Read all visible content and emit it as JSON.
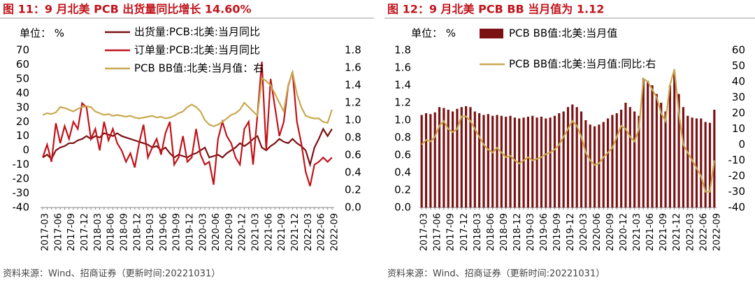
{
  "chart_data": [
    {
      "type": "line",
      "title": "图 11：9 月北美 PCB 出货量同比增长 14.60%",
      "unit_label": "单位： %",
      "source": "资料来源：Wind、招商证券（更新时间:20221031）",
      "categories": [
        "2017-03",
        null,
        null,
        "2017-06",
        null,
        null,
        "2017-09",
        null,
        null,
        "2017-12",
        null,
        null,
        "2018-03",
        null,
        null,
        "2018-06",
        null,
        null,
        "2018-09",
        null,
        null,
        "2018-12",
        null,
        null,
        "2019-03",
        null,
        null,
        "2019-06",
        null,
        null,
        "2019-09",
        null,
        null,
        "2019-12",
        null,
        null,
        "2020-03",
        null,
        null,
        "2020-06",
        null,
        null,
        "2020-09",
        null,
        null,
        "2020-12",
        null,
        null,
        "2021-03",
        null,
        null,
        "2021-06",
        null,
        null,
        "2021-09",
        null,
        null,
        "2021-12",
        null,
        null,
        "2022-03",
        null,
        null,
        "2022-06",
        null,
        null,
        "2022-09"
      ],
      "ylim": [
        -40,
        70
      ],
      "yticks": [
        -40,
        -30,
        -20,
        -10,
        0,
        10,
        20,
        30,
        40,
        50,
        60,
        70
      ],
      "y2lim": [
        0,
        1.8
      ],
      "y2ticks": [
        {
          "value": 0,
          "label": "0.0"
        },
        0.2,
        0.4,
        0.6,
        0.8,
        {
          "value": 1,
          "label": "1.0"
        },
        1.2,
        1.4,
        1.6,
        1.8
      ],
      "series": [
        {
          "name": "出货量:PCB:北美:当月同比",
          "color": "#7b1113",
          "values": [
            -5,
            -3,
            -6,
            0,
            2,
            3,
            5,
            5,
            7,
            8,
            10,
            8,
            10,
            9,
            12,
            11,
            10,
            12,
            10,
            9,
            8,
            7,
            6,
            5,
            4,
            2,
            3,
            0,
            2,
            -2,
            -5,
            -3,
            -4,
            -5,
            -3,
            -2,
            0,
            2,
            -5,
            -4,
            -3,
            -5,
            -2,
            0,
            2,
            5,
            3,
            5,
            8,
            10,
            2,
            0,
            3,
            5,
            8,
            6,
            5,
            8,
            5,
            3,
            0,
            -10,
            2,
            8,
            15,
            10,
            15
          ]
        },
        {
          "name": "订单量:PCB:北美:当月同比",
          "color": "#c0141b",
          "values": [
            -5,
            4,
            -8,
            19,
            5,
            17,
            8,
            20,
            15,
            33,
            30,
            8,
            15,
            0,
            20,
            7,
            15,
            5,
            0,
            -8,
            -2,
            -12,
            5,
            18,
            -5,
            2,
            8,
            -3,
            12,
            20,
            -10,
            -5,
            10,
            -8,
            -5,
            15,
            -3,
            -10,
            -8,
            -24,
            8,
            20,
            10,
            5,
            -5,
            -10,
            15,
            20,
            -10,
            25,
            62,
            0,
            50,
            30,
            10,
            20,
            45,
            55,
            20,
            5,
            -15,
            -25,
            -10,
            -8,
            -5,
            -8,
            -5
          ]
        },
        {
          "name": "PCB BB值:北美:当月值：右",
          "color": "#c8a951",
          "axis": "y2",
          "values": [
            1.06,
            1.08,
            1.07,
            1.09,
            1.15,
            1.14,
            1.12,
            1.1,
            1.13,
            1.15,
            1.16,
            1.15,
            1.1,
            1.08,
            1.06,
            1.07,
            1.05,
            1.06,
            1.05,
            1.04,
            1.05,
            1.03,
            1.02,
            1.03,
            1.04,
            1.05,
            1.03,
            1.04,
            1.02,
            1.03,
            1.05,
            1.08,
            1.1,
            1.15,
            1.18,
            1.15,
            1.1,
            1.0,
            0.95,
            0.93,
            0.95,
            0.98,
            1.02,
            1.06,
            1.08,
            1.12,
            1.2,
            1.15,
            1.1,
            1.05,
            1.48,
            1.45,
            1.4,
            1.3,
            1.2,
            1.1,
            1.4,
            1.55,
            1.3,
            1.15,
            1.05,
            1.03,
            1.02,
            1.02,
            0.98,
            0.97,
            1.12
          ]
        }
      ]
    },
    {
      "type": "combo",
      "title": "图 12：9 月北美 PCB BB 当月值为 1.12",
      "unit_label": "单位： %",
      "source": "资料来源：Wind、招商证券（更新时间:20221031）",
      "categories": [
        "2017-03",
        null,
        null,
        "2017-06",
        null,
        null,
        "2017-09",
        null,
        null,
        "2017-12",
        null,
        null,
        "2018-03",
        null,
        null,
        "2018-06",
        null,
        null,
        "2018-09",
        null,
        null,
        "2018-12",
        null,
        null,
        "2019-03",
        null,
        null,
        "2019-06",
        null,
        null,
        "2019-09",
        null,
        null,
        "2019-12",
        null,
        null,
        "2020-03",
        null,
        null,
        "2020-06",
        null,
        null,
        "2020-09",
        null,
        null,
        "2020-12",
        null,
        null,
        "2021-03",
        null,
        null,
        "2021-06",
        null,
        null,
        "2021-09",
        null,
        null,
        "2021-12",
        null,
        null,
        "2022-03",
        null,
        null,
        "2022-06",
        null,
        null,
        "2022-09"
      ],
      "ylim": [
        0,
        1.8
      ],
      "yticks": [
        {
          "value": 0,
          "label": "0.0"
        },
        0.2,
        0.4,
        0.6,
        0.8,
        {
          "value": 1,
          "label": "1.0"
        },
        1.2,
        1.4,
        1.6,
        1.8
      ],
      "y2lim": [
        -40,
        60
      ],
      "y2ticks": [
        -40,
        -30,
        -20,
        -10,
        0,
        10,
        20,
        30,
        40,
        50,
        60
      ],
      "series": [
        {
          "name": "PCB BB值:北美:当月值",
          "color": "#7b1113",
          "type": "bar",
          "values": [
            1.06,
            1.08,
            1.07,
            1.09,
            1.15,
            1.14,
            1.12,
            1.1,
            1.13,
            1.15,
            1.16,
            1.15,
            1.1,
            1.08,
            1.06,
            1.07,
            1.05,
            1.06,
            1.05,
            1.04,
            1.05,
            1.03,
            1.02,
            1.03,
            1.04,
            1.05,
            1.03,
            1.04,
            1.02,
            1.03,
            1.05,
            1.08,
            1.1,
            1.15,
            1.18,
            1.15,
            1.1,
            1.0,
            0.95,
            0.93,
            0.95,
            0.98,
            1.02,
            1.06,
            1.08,
            1.12,
            1.2,
            1.15,
            1.1,
            1.05,
            1.48,
            1.45,
            1.4,
            1.3,
            1.2,
            1.1,
            1.4,
            1.55,
            1.3,
            1.15,
            1.05,
            1.03,
            1.02,
            1.02,
            0.98,
            0.97,
            1.12
          ]
        },
        {
          "name": "PCB BB值:北美:当月值:同比:右",
          "color": "#c8a951",
          "type": "line",
          "axis": "y2",
          "values": [
            0,
            3,
            2,
            5,
            12,
            15,
            10,
            8,
            10,
            18,
            18,
            15,
            10,
            5,
            0,
            -3,
            -5,
            -2,
            -5,
            -8,
            -7,
            -10,
            -12,
            -10,
            -8,
            -10,
            -9,
            -8,
            -6,
            -5,
            -3,
            0,
            5,
            10,
            15,
            12,
            5,
            -5,
            -10,
            -13,
            -12,
            -8,
            -5,
            -2,
            5,
            12,
            10,
            5,
            2,
            10,
            42,
            40,
            35,
            30,
            20,
            15,
            38,
            48,
            20,
            0,
            -5,
            -10,
            -15,
            -20,
            -30,
            -30,
            -10
          ]
        }
      ]
    }
  ]
}
